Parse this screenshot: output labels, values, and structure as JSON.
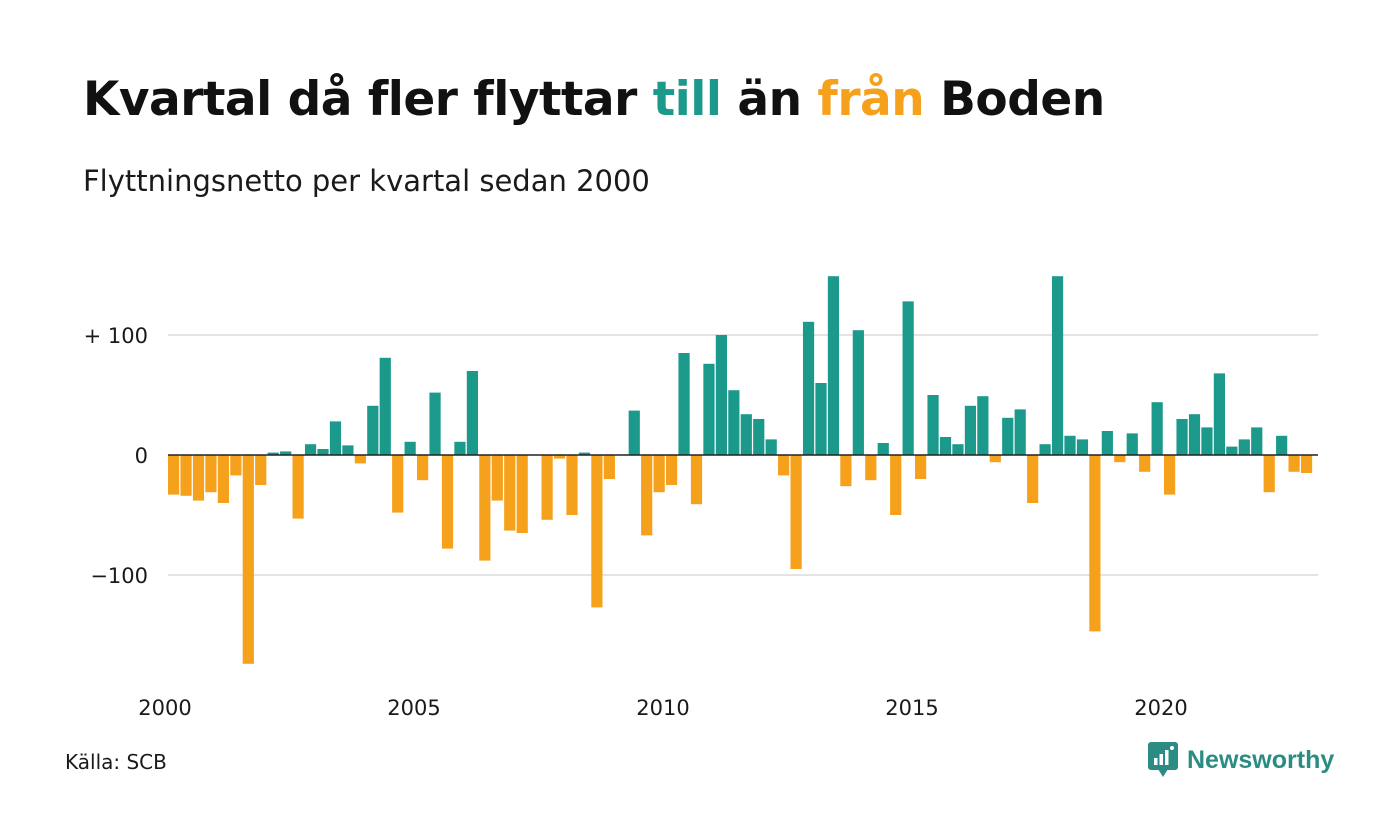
{
  "title": {
    "part1": "Kvartal då fler flyttar ",
    "highlight_in": "till",
    "part2": " än ",
    "highlight_out": "från",
    "part3": " Boden"
  },
  "subtitle": "Flyttningsnetto per kvartal sedan 2000",
  "source": "Källa: SCB",
  "logo": {
    "text": "Newsworthy",
    "icon": "chart-bubble-icon"
  },
  "colors": {
    "positive": "#1b998b",
    "negative": "#f5a11c",
    "grid": "#e3e3e3",
    "zero": "#222222"
  },
  "chart_data": {
    "type": "bar",
    "x_start": "2000 Q1",
    "ylim": [
      -180,
      150
    ],
    "yticks": [
      {
        "value": 100,
        "label": "+ 100"
      },
      {
        "value": 0,
        "label": "0"
      },
      {
        "value": -100,
        "label": "−100"
      }
    ],
    "xticks": [
      {
        "quarter_index": 0,
        "label": "2000"
      },
      {
        "quarter_index": 20,
        "label": "2005"
      },
      {
        "quarter_index": 40,
        "label": "2010"
      },
      {
        "quarter_index": 60,
        "label": "2015"
      },
      {
        "quarter_index": 80,
        "label": "2020"
      }
    ],
    "grid": true,
    "legend": "none",
    "values": [
      -33,
      -34,
      -38,
      -31,
      -40,
      -17,
      -174,
      -25,
      2,
      3,
      -53,
      9,
      5,
      28,
      8,
      -7,
      41,
      81,
      -48,
      11,
      -21,
      52,
      -78,
      11,
      70,
      -88,
      -38,
      -63,
      -65,
      0,
      -54,
      -3,
      -50,
      2,
      -127,
      -20,
      0,
      37,
      -67,
      -31,
      -25,
      85,
      -41,
      76,
      100,
      54,
      34,
      30,
      13,
      -17,
      -95,
      111,
      60,
      149,
      -26,
      104,
      -21,
      10,
      -50,
      128,
      -20,
      50,
      15,
      9,
      41,
      49,
      -6,
      31,
      38,
      -40,
      9,
      149,
      16,
      13,
      -147,
      20,
      -6,
      18,
      -14,
      44,
      -33,
      30,
      34,
      23,
      68,
      7,
      13,
      23,
      -31,
      16,
      -14,
      -15
    ]
  }
}
